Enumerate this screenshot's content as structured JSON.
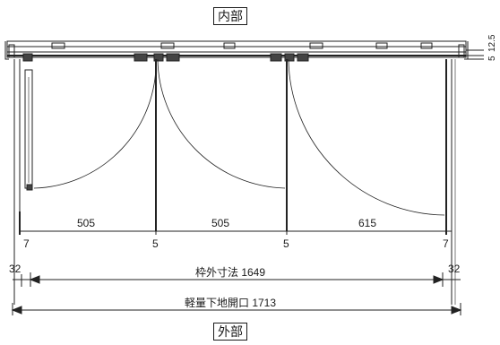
{
  "labels": {
    "interior": "内部",
    "exterior": "外部"
  },
  "dimensions": {
    "panels": [
      "505",
      "505",
      "615"
    ],
    "posts": [
      "7",
      "5",
      "5",
      "7"
    ],
    "side_left": "32",
    "side_right": "32",
    "frame_outer": "枠外寸法 1649",
    "lgs_opening": "軽量下地開口 1713",
    "top_right": "5",
    "top_right_2": "12.5"
  }
}
